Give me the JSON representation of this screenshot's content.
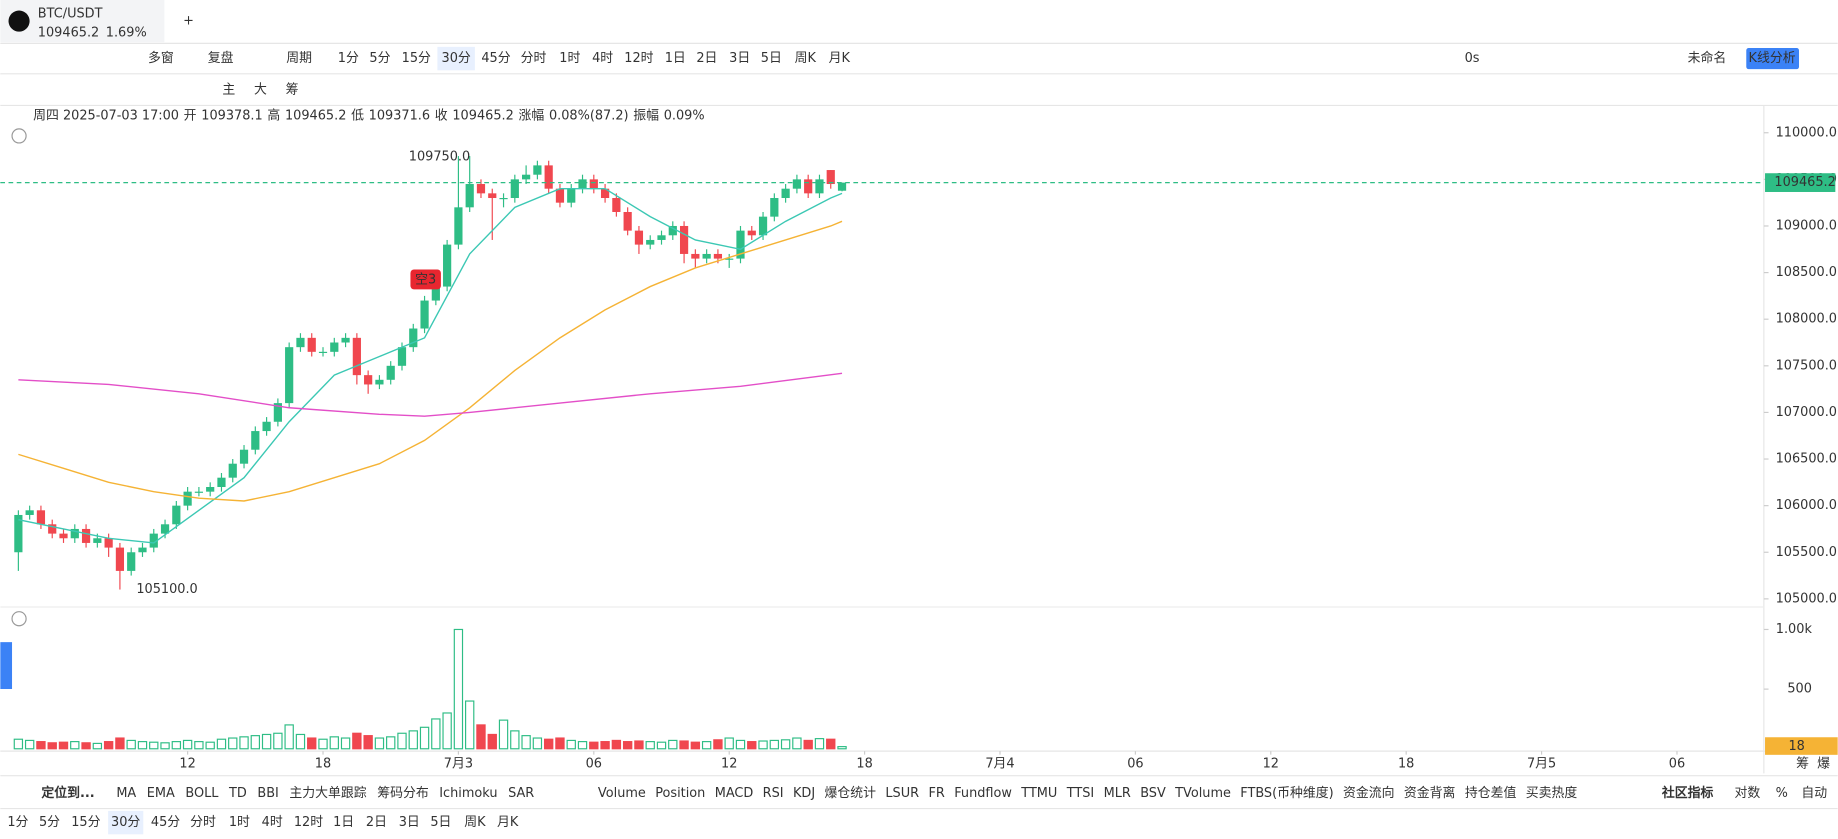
{
  "ui": {
    "symbol": "BTC/USDT",
    "price": "109465.2",
    "change_pct": "1.69%",
    "toolbar": {
      "multi": "多窗",
      "replay": "复盘",
      "period": "周期",
      "intervals": [
        "1分",
        "5分",
        "15分",
        "30分",
        "45分",
        "分时",
        "1时",
        "4时",
        "12时",
        "1日",
        "2日",
        "3日",
        "5日",
        "周K",
        "月K"
      ],
      "timer": "0s",
      "layout_name": "未命名",
      "analysis": "K线分析"
    },
    "draw_tools": [
      "主",
      "大",
      "筹"
    ],
    "info": {
      "datetime": "周四 2025-07-03 17:00",
      "open_label": "开",
      "high_label": "高",
      "low_label": "低",
      "close_label": "收",
      "change_label": "涨幅",
      "change": "0.08%(87.2)",
      "amp_label": "振幅",
      "amp": "0.09%"
    },
    "indicators": {
      "locate": "定位到...",
      "main": [
        "MA",
        "EMA",
        "BOLL",
        "TD",
        "BBI",
        "主力大单跟踪",
        "筹码分布",
        "Ichimoku",
        "SAR"
      ],
      "sub": [
        "Volume",
        "Position",
        "MACD",
        "RSI",
        "KDJ",
        "爆仓统计",
        "LSUR",
        "FR",
        "Fundflow",
        "TTMU",
        "TTSI",
        "MLR",
        "BSV",
        "TVolume",
        "FTBS(币种维度)",
        "资金流向",
        "资金背离",
        "持仓差值",
        "买卖热度"
      ],
      "community": "社区指标",
      "log": "对数",
      "pct": "%",
      "auto": "自动"
    },
    "bottom_intervals": [
      "1分",
      "5分",
      "15分",
      "30分",
      "45分",
      "分时",
      "1时",
      "4时",
      "12时",
      "1日",
      "2日",
      "3日",
      "5日",
      "周K",
      "月K"
    ],
    "axis_corner": [
      "筹",
      "爆"
    ]
  },
  "chart_data": {
    "type": "candlestick",
    "up_color": "#2ebd85",
    "down_color": "#f0474f",
    "open": [
      105500,
      105900,
      105950,
      105800,
      105700,
      105650,
      105750,
      105600,
      105650,
      105550,
      105300,
      105500,
      105550,
      105700,
      105800,
      106000,
      106150,
      106150,
      106200,
      106300,
      106450,
      106600,
      106800,
      106900,
      107100,
      107700,
      107800,
      107650,
      107650,
      107750,
      107800,
      107400,
      107300,
      107350,
      107500,
      107700,
      107900,
      108200,
      108350,
      108800,
      109200,
      109450,
      109350,
      109300,
      109300,
      109500,
      109550,
      109650,
      109400,
      109250,
      109400,
      109500,
      109400,
      109300,
      109150,
      108950,
      108800,
      108850,
      108900,
      109000,
      108700,
      108650,
      108700,
      108650,
      108650,
      108950,
      108900,
      109100,
      109300,
      109400,
      109500,
      109350,
      109600,
      109378.1
    ],
    "high": [
      105950,
      106000,
      106000,
      105850,
      105750,
      105800,
      105800,
      105700,
      105700,
      105600,
      105550,
      105600,
      105750,
      105850,
      106050,
      106200,
      106200,
      106250,
      106350,
      106500,
      106650,
      106850,
      106950,
      107150,
      107750,
      107850,
      107850,
      107700,
      107800,
      107850,
      107850,
      107450,
      107400,
      107550,
      107750,
      107950,
      108250,
      108400,
      108850,
      109750,
      109750,
      109500,
      109400,
      109350,
      109550,
      109650,
      109700,
      109700,
      109450,
      109450,
      109550,
      109550,
      109450,
      109350,
      109200,
      109000,
      108900,
      108950,
      109050,
      109050,
      108750,
      108750,
      108750,
      108700,
      109000,
      109000,
      109150,
      109350,
      109450,
      109550,
      109550,
      109550,
      109600,
      109465.2
    ],
    "low": [
      105300,
      105850,
      105750,
      105650,
      105600,
      105600,
      105550,
      105550,
      105450,
      105100,
      105250,
      105450,
      105500,
      105650,
      105750,
      105950,
      106100,
      106100,
      106150,
      106250,
      106400,
      106550,
      106750,
      106850,
      107050,
      107650,
      107600,
      107600,
      107600,
      107700,
      107300,
      107200,
      107250,
      107300,
      107450,
      107650,
      107850,
      108150,
      108300,
      108750,
      109150,
      109300,
      108850,
      109200,
      109250,
      109450,
      109500,
      109350,
      109200,
      109200,
      109350,
      109350,
      109250,
      109100,
      108900,
      108700,
      108750,
      108800,
      108850,
      108600,
      108550,
      108600,
      108600,
      108550,
      108600,
      108850,
      108850,
      109050,
      109250,
      109350,
      109300,
      109300,
      109400,
      109371.6
    ],
    "close": [
      105900,
      105950,
      105800,
      105700,
      105650,
      105750,
      105600,
      105650,
      105550,
      105300,
      105500,
      105550,
      105700,
      105800,
      106000,
      106150,
      106150,
      106200,
      106300,
      106450,
      106600,
      106800,
      106900,
      107100,
      107700,
      107800,
      107650,
      107650,
      107750,
      107800,
      107400,
      107300,
      107350,
      107500,
      107700,
      107900,
      108200,
      108350,
      108800,
      109200,
      109450,
      109350,
      109300,
      109300,
      109500,
      109550,
      109650,
      109400,
      109250,
      109400,
      109500,
      109400,
      109300,
      109150,
      108950,
      108800,
      108850,
      108900,
      109000,
      108700,
      108650,
      108700,
      108650,
      108650,
      108950,
      108900,
      109100,
      109300,
      109400,
      109500,
      109350,
      109500,
      109450,
      109465.2
    ],
    "volume": [
      80,
      70,
      60,
      50,
      55,
      60,
      50,
      45,
      60,
      90,
      70,
      60,
      55,
      50,
      60,
      70,
      60,
      55,
      80,
      90,
      100,
      110,
      120,
      130,
      200,
      120,
      90,
      80,
      100,
      90,
      130,
      110,
      90,
      100,
      130,
      150,
      180,
      250,
      300,
      1000,
      400,
      200,
      120,
      240,
      150,
      110,
      90,
      80,
      90,
      70,
      60,
      55,
      60,
      70,
      60,
      65,
      60,
      55,
      70,
      65,
      55,
      60,
      75,
      90,
      70,
      60,
      65,
      70,
      75,
      90,
      70,
      85,
      80,
      18
    ],
    "volume_label": "18",
    "ma": [
      {
        "color": "#3cc8b4",
        "x": [
          0,
          4,
          8,
          12,
          16,
          20,
          24,
          28,
          32,
          36,
          40,
          44,
          48,
          52,
          56,
          60,
          64,
          68,
          72,
          73
        ],
        "values": [
          105850,
          105750,
          105650,
          105600,
          105950,
          106300,
          106900,
          107400,
          107600,
          107800,
          108700,
          109200,
          109400,
          109400,
          109100,
          108850,
          108750,
          109050,
          109300,
          109350
        ]
      },
      {
        "color": "#f5b335",
        "x": [
          0,
          4,
          8,
          12,
          16,
          20,
          24,
          28,
          32,
          36,
          40,
          44,
          48,
          52,
          56,
          60,
          64,
          68,
          72,
          73
        ],
        "values": [
          106550,
          106400,
          106250,
          106150,
          106080,
          106050,
          106150,
          106300,
          106450,
          106700,
          107050,
          107450,
          107800,
          108100,
          108350,
          108550,
          108700,
          108850,
          109000,
          109050
        ]
      },
      {
        "color": "#e34fc8",
        "x": [
          0,
          8,
          16,
          24,
          32,
          36,
          40,
          48,
          56,
          64,
          73
        ],
        "values": [
          107350,
          107300,
          107200,
          107050,
          106980,
          106960,
          107000,
          107100,
          107200,
          107280,
          107420
        ]
      }
    ],
    "ylim": [
      104830,
      110250
    ],
    "yticks": [
      {
        "value": 110000,
        "label": "110000.0"
      },
      {
        "value": 109500,
        "label": "109500.0"
      },
      {
        "value": 109000,
        "label": "109000.0"
      },
      {
        "value": 108500,
        "label": "108500.0"
      },
      {
        "value": 108000,
        "label": "108000.0"
      },
      {
        "value": 107500,
        "label": "107500.0"
      },
      {
        "value": 107000,
        "label": "107000.0"
      },
      {
        "value": 106500,
        "label": "106500.0"
      },
      {
        "value": 106000,
        "label": "106000.0"
      },
      {
        "value": 105500,
        "label": "105500.0"
      },
      {
        "value": 105000,
        "label": "105000.0"
      }
    ],
    "vlim": [
      0,
      1100
    ],
    "vticks": [
      {
        "value": 1000,
        "label": "1.00k"
      },
      500
    ],
    "xlim": [
      -1.6,
      154.7
    ],
    "xticks": [
      {
        "value": 15,
        "label": "12"
      },
      {
        "value": 27,
        "label": "18"
      },
      {
        "value": 39,
        "label": "7月3"
      },
      {
        "value": 51,
        "label": "06"
      },
      {
        "value": 63,
        "label": "12"
      },
      {
        "value": 75,
        "label": "18"
      },
      {
        "value": 87,
        "label": "7月4"
      },
      {
        "value": 99,
        "label": "06"
      },
      {
        "value": 111,
        "label": "12"
      },
      {
        "value": 123,
        "label": "18"
      },
      {
        "value": 135,
        "label": "7月5"
      },
      {
        "value": 147,
        "label": "06"
      }
    ],
    "annotations": [
      "109750.0",
      "105100.0",
      "空3"
    ]
  }
}
